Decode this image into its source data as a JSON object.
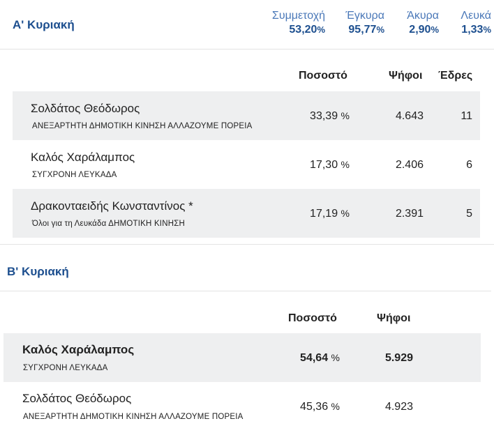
{
  "round_a": {
    "title": "Α' Κυριακή",
    "stats": [
      {
        "label": "Συμμετοχή",
        "value": "53,20",
        "unit": "%"
      },
      {
        "label": "Έγκυρα",
        "value": "95,77",
        "unit": "%"
      },
      {
        "label": "Άκυρα",
        "value": "2,90",
        "unit": "%"
      },
      {
        "label": "Λευκά",
        "value": "1,33",
        "unit": "%"
      }
    ],
    "columns": {
      "percent": "Ποσοστό",
      "votes": "Ψήφοι",
      "seats": "Έδρες"
    },
    "rows": [
      {
        "name": "Σολδάτος Θεόδωρος",
        "party": "ΑΝΕΞΑΡΤΗΤΗ ΔΗΜΟΤΙΚΗ ΚΙΝΗΣΗ ΑΛΛΑΖΟΥΜΕ ΠΟΡΕΙΑ",
        "percent": "33,39",
        "unit": "%",
        "votes": "4.643",
        "seats": "11"
      },
      {
        "name": "Καλός Χαράλαμπος",
        "party": "ΣΥΓΧΡΟΝΗ ΛΕΥΚΑΔΑ",
        "percent": "17,30",
        "unit": "%",
        "votes": "2.406",
        "seats": "6"
      },
      {
        "name": "Δρακονταειδής Κωνσταντίνος *",
        "party": "Όλοι για τη Λευκάδα ΔΗΜΟΤΙΚΗ ΚΙΝΗΣΗ",
        "percent": "17,19",
        "unit": "%",
        "votes": "2.391",
        "seats": "5"
      }
    ]
  },
  "round_b": {
    "title": "Β' Κυριακή",
    "columns": {
      "percent": "Ποσοστό",
      "votes": "Ψήφοι"
    },
    "rows": [
      {
        "name": "Καλός Χαράλαμπος",
        "party": "ΣΥΓΧΡΟΝΗ ΛΕΥΚΑΔΑ",
        "percent": "54,64",
        "unit": "%",
        "votes": "5.929"
      },
      {
        "name": "Σολδάτος Θεόδωρος",
        "party": "ΑΝΕΞΑΡΤΗΤΗ ΔΗΜΟΤΙΚΗ ΚΙΝΗΣΗ ΑΛΛΑΖΟΥΜΕ ΠΟΡΕΙΑ",
        "percent": "45,36",
        "unit": "%",
        "votes": "4.923"
      }
    ]
  },
  "colors": {
    "accent": "#1d4f8f",
    "accent_light": "#4a78b8",
    "row_shade": "#eeeff0"
  }
}
